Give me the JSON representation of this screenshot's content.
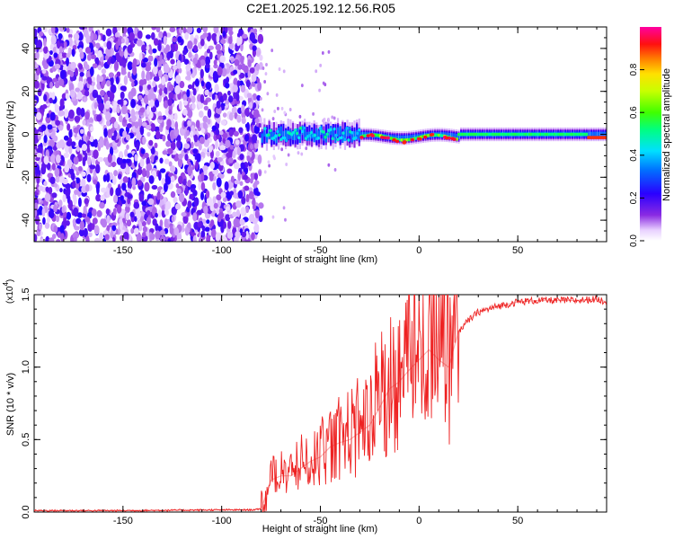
{
  "title": "C2E1.2025.192.12.56.R05",
  "colors": {
    "trace": "#ee2222",
    "axis": "#000000",
    "background": "#ffffff"
  },
  "chart_data": [
    {
      "type": "heatmap",
      "xlabel": "Height of straight line (km)",
      "ylabel": "Frequency (Hz)",
      "xlim": [
        -195,
        95
      ],
      "ylim": [
        -50,
        50
      ],
      "x_ticks": [
        "-150",
        "-100",
        "-50",
        "0",
        "50"
      ],
      "x_tick_values": [
        -150,
        -100,
        -50,
        0,
        50
      ],
      "y_ticks": [
        "-40",
        "-20",
        "0",
        "20",
        "40"
      ],
      "y_tick_values": [
        -40,
        -20,
        0,
        20,
        40
      ],
      "colorbar": {
        "label": "Normalized spectral amplitude",
        "range": [
          0,
          1
        ],
        "ticks": [
          "0.0",
          "0.2",
          "0.4",
          "0.6",
          "0.8"
        ],
        "tick_values": [
          0,
          0.2,
          0.4,
          0.6,
          0.8
        ],
        "colormap": "rainbow (white-violet-blue-cyan-green-yellow-red-magenta)"
      },
      "regions": [
        {
          "x_range": [
            -195,
            -80
          ],
          "freq_range": [
            -50,
            50
          ],
          "amplitude": "low, broadband noise"
        },
        {
          "x_range": [
            -80,
            -30
          ],
          "freq_range": [
            -6,
            6
          ],
          "amplitude": "0.3-0.5, scattered band around 0 Hz"
        },
        {
          "x_range": [
            -30,
            20
          ],
          "freq_range": [
            -3,
            3
          ],
          "amplitude": "0.5-1.0, narrow band with red peaks"
        },
        {
          "x_range": [
            20,
            95
          ],
          "freq_range": [
            -3,
            3
          ],
          "amplitude": "0.4-0.6, steady narrow band, red at far right"
        }
      ]
    },
    {
      "type": "line",
      "xlabel": "Height of straight line (km)",
      "ylabel": "SNR (10 * v/v)",
      "y_exponent_label": "(x10",
      "y_exponent_power": "4",
      "xlim": [
        -195,
        95
      ],
      "ylim": [
        0,
        1.5
      ],
      "x_ticks": [
        "-150",
        "-100",
        "-50",
        "0",
        "50"
      ],
      "x_tick_values": [
        -150,
        -100,
        -50,
        0,
        50
      ],
      "y_ticks": [
        "0.0",
        "0.5",
        "1.0",
        "1.5"
      ],
      "y_tick_values": [
        0,
        0.5,
        1.0,
        1.5
      ],
      "series": [
        {
          "color": "#ee2222",
          "x": [
            -195,
            -150,
            -100,
            -85,
            -80,
            -78,
            -75,
            -70,
            -65,
            -60,
            -55,
            -50,
            -45,
            -40,
            -35,
            -30,
            -25,
            -20,
            -15,
            -10,
            -5,
            0,
            5,
            10,
            15,
            20,
            25,
            30,
            40,
            50,
            60,
            70,
            80,
            90,
            95
          ],
          "values": [
            0.01,
            0.01,
            0.015,
            0.015,
            0.02,
            0.1,
            0.22,
            0.25,
            0.25,
            0.3,
            0.35,
            0.38,
            0.45,
            0.48,
            0.5,
            0.55,
            0.6,
            0.72,
            0.85,
            0.9,
            0.98,
            1.05,
            1.12,
            1.05,
            1.0,
            1.25,
            1.32,
            1.38,
            1.42,
            1.45,
            1.46,
            1.46,
            1.46,
            1.47,
            1.45
          ]
        }
      ]
    }
  ]
}
